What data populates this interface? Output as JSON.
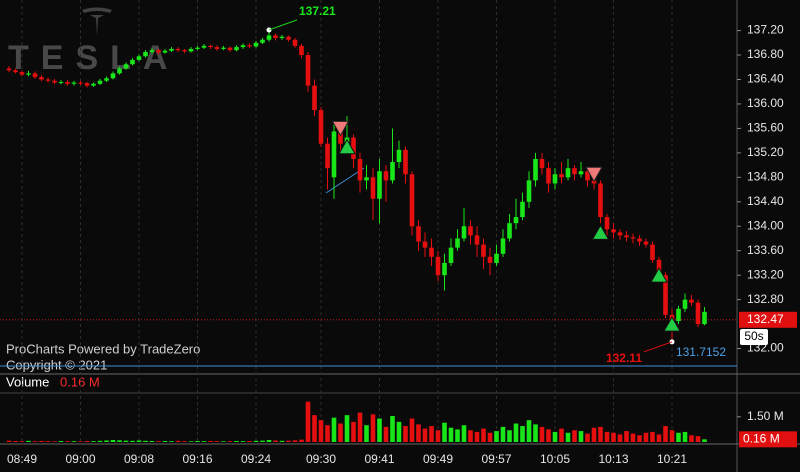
{
  "chart_data": {
    "type": "candlestick",
    "watermark": "TESLA",
    "credit": "ProCharts Powered by TradeZero",
    "copyright": "Copyright © 2021",
    "timer": "50s",
    "volume_title": "Volume",
    "volume_current": {
      "value": 0.16,
      "label": "0.16 M"
    },
    "categories": [
      null,
      null,
      "08:49",
      null,
      null,
      null,
      null,
      null,
      null,
      null,
      null,
      "09:00",
      null,
      null,
      null,
      null,
      null,
      null,
      null,
      null,
      "09:08",
      null,
      null,
      null,
      null,
      null,
      null,
      null,
      null,
      "09:16",
      null,
      null,
      null,
      null,
      null,
      null,
      null,
      null,
      "09:24",
      null,
      null,
      null,
      null,
      null,
      null,
      null,
      null,
      null,
      "09:30",
      null,
      null,
      null,
      null,
      null,
      null,
      null,
      null,
      "09:41",
      null,
      null,
      null,
      null,
      null,
      null,
      null,
      null,
      "09:49",
      null,
      null,
      null,
      null,
      null,
      null,
      null,
      null,
      "09:57",
      null,
      null,
      null,
      null,
      null,
      null,
      null,
      null,
      "10:05",
      null,
      null,
      null,
      null,
      null,
      null,
      null,
      null,
      "10:13",
      null,
      null,
      null,
      null,
      null,
      null,
      null,
      null,
      "10:21",
      null,
      null,
      null,
      null,
      null
    ],
    "open": [
      136.58,
      136.55,
      136.52,
      136.48,
      136.5,
      136.44,
      136.4,
      136.38,
      136.35,
      136.36,
      136.33,
      136.35,
      136.34,
      136.3,
      136.33,
      136.38,
      136.42,
      136.5,
      136.58,
      136.65,
      136.72,
      136.78,
      136.85,
      136.88,
      136.84,
      136.87,
      136.9,
      136.88,
      136.86,
      136.9,
      136.92,
      136.95,
      136.93,
      136.9,
      136.92,
      136.88,
      136.93,
      136.96,
      136.94,
      137.0,
      137.05,
      137.12,
      137.08,
      137.1,
      137.05,
      136.95,
      136.8,
      136.3,
      135.9,
      135.35,
      134.8,
      135.55,
      135.35,
      135.45,
      135.1,
      134.75,
      134.8,
      134.45,
      134.9,
      134.75,
      135.05,
      135.25,
      134.85,
      134.0,
      133.75,
      133.65,
      133.5,
      133.2,
      133.4,
      133.65,
      133.8,
      134.0,
      133.85,
      133.7,
      133.5,
      133.4,
      133.55,
      133.8,
      134.05,
      134.15,
      134.4,
      134.75,
      135.1,
      134.95,
      134.7,
      134.85,
      134.8,
      134.95,
      134.85,
      134.9,
      134.75,
      134.7,
      134.15,
      133.95,
      133.9,
      133.85,
      133.82,
      133.8,
      133.75,
      133.7,
      133.45,
      133.2,
      132.55,
      132.45,
      132.65,
      132.8,
      132.75,
      132.4
    ],
    "high": [
      136.62,
      136.58,
      136.55,
      136.54,
      136.53,
      136.47,
      136.43,
      136.41,
      136.39,
      136.39,
      136.38,
      136.38,
      136.36,
      136.35,
      136.41,
      136.45,
      136.53,
      136.61,
      136.68,
      136.75,
      136.81,
      136.88,
      136.91,
      136.9,
      136.9,
      136.93,
      136.93,
      136.9,
      136.93,
      136.95,
      136.98,
      136.97,
      136.96,
      136.95,
      136.94,
      136.96,
      136.99,
      136.99,
      137.03,
      137.08,
      137.21,
      137.15,
      137.13,
      137.12,
      137.08,
      136.98,
      136.85,
      136.4,
      135.95,
      135.45,
      135.7,
      135.65,
      135.8,
      135.5,
      135.2,
      135.0,
      134.95,
      135.1,
      135.0,
      135.6,
      135.4,
      135.3,
      134.9,
      134.1,
      133.9,
      133.8,
      133.6,
      133.55,
      133.8,
      133.95,
      134.3,
      134.1,
      134.0,
      133.8,
      133.65,
      133.7,
      133.95,
      134.2,
      134.45,
      134.55,
      134.9,
      135.2,
      135.2,
      135.05,
      134.95,
      135.05,
      135.1,
      135.0,
      135.05,
      134.95,
      134.85,
      134.75,
      134.2,
      134.05,
      133.95,
      133.92,
      133.88,
      133.85,
      133.8,
      133.75,
      133.5,
      133.25,
      132.65,
      132.7,
      132.9,
      132.88,
      132.8,
      132.68
    ],
    "low": [
      136.52,
      136.5,
      136.45,
      136.45,
      136.41,
      136.37,
      136.35,
      136.32,
      136.32,
      136.3,
      136.3,
      136.31,
      136.27,
      136.28,
      136.31,
      136.36,
      136.4,
      136.48,
      136.56,
      136.63,
      136.7,
      136.76,
      136.82,
      136.81,
      136.82,
      136.85,
      136.85,
      136.83,
      136.84,
      136.88,
      136.9,
      136.9,
      136.87,
      136.88,
      136.85,
      136.86,
      136.9,
      136.91,
      136.92,
      136.98,
      137.02,
      137.04,
      137.05,
      137.02,
      136.92,
      136.75,
      136.2,
      135.8,
      135.3,
      134.6,
      134.45,
      135.2,
      135.3,
      134.95,
      134.55,
      134.6,
      134.1,
      134.05,
      134.4,
      134.7,
      134.95,
      134.7,
      133.85,
      133.6,
      133.5,
      133.35,
      133.1,
      132.95,
      133.35,
      133.6,
      133.75,
      133.7,
      133.5,
      133.3,
      133.2,
      133.35,
      133.5,
      133.75,
      133.95,
      134.1,
      134.3,
      134.65,
      134.85,
      134.55,
      134.6,
      134.7,
      134.75,
      134.75,
      134.8,
      134.65,
      134.6,
      134.05,
      133.85,
      133.8,
      133.78,
      133.75,
      133.72,
      133.68,
      133.65,
      133.4,
      133.15,
      132.5,
      132.11,
      132.4,
      132.6,
      132.7,
      132.35,
      132.38
    ],
    "close": [
      136.55,
      136.52,
      136.48,
      136.5,
      136.44,
      136.4,
      136.38,
      136.35,
      136.36,
      136.33,
      136.35,
      136.34,
      136.3,
      136.33,
      136.38,
      136.42,
      136.5,
      136.58,
      136.65,
      136.72,
      136.78,
      136.85,
      136.88,
      136.84,
      136.87,
      136.9,
      136.88,
      136.86,
      136.9,
      136.92,
      136.95,
      136.93,
      136.9,
      136.92,
      136.88,
      136.93,
      136.96,
      136.94,
      137.0,
      137.05,
      137.12,
      137.08,
      137.1,
      137.05,
      136.95,
      136.8,
      136.3,
      135.9,
      135.35,
      134.95,
      135.55,
      135.35,
      135.45,
      135.1,
      134.75,
      134.8,
      134.45,
      134.9,
      134.75,
      135.05,
      135.25,
      134.85,
      134.0,
      133.75,
      133.65,
      133.5,
      133.2,
      133.4,
      133.65,
      133.8,
      134.0,
      133.85,
      133.7,
      133.5,
      133.4,
      133.55,
      133.8,
      134.05,
      134.15,
      134.4,
      134.75,
      135.1,
      134.95,
      134.7,
      134.85,
      134.8,
      134.95,
      134.85,
      134.9,
      134.75,
      134.7,
      134.15,
      133.95,
      133.9,
      133.85,
      133.82,
      133.8,
      133.75,
      133.7,
      133.45,
      133.2,
      132.55,
      132.45,
      132.65,
      132.8,
      132.75,
      132.4,
      132.6
    ],
    "volume": [
      0.08,
      0.06,
      0.05,
      0.07,
      0.05,
      0.06,
      0.05,
      0.04,
      0.06,
      0.05,
      0.05,
      0.04,
      0.06,
      0.05,
      0.07,
      0.09,
      0.12,
      0.1,
      0.08,
      0.07,
      0.09,
      0.07,
      0.06,
      0.05,
      0.06,
      0.05,
      0.07,
      0.05,
      0.04,
      0.06,
      0.05,
      0.06,
      0.05,
      0.04,
      0.05,
      0.06,
      0.05,
      0.06,
      0.07,
      0.08,
      0.12,
      0.09,
      0.07,
      0.08,
      0.1,
      0.14,
      2.4,
      1.6,
      1.3,
      1.0,
      1.45,
      1.1,
      1.6,
      1.2,
      1.75,
      1.0,
      1.65,
      1.4,
      0.9,
      1.55,
      1.2,
      0.95,
      1.4,
      1.05,
      0.8,
      0.95,
      0.7,
      1.15,
      0.85,
      0.75,
      1.0,
      0.7,
      0.6,
      0.8,
      0.55,
      0.65,
      0.9,
      0.7,
      1.1,
      0.95,
      1.3,
      1.05,
      0.9,
      0.75,
      0.6,
      0.8,
      0.55,
      0.7,
      0.65,
      0.5,
      0.85,
      0.9,
      0.6,
      0.55,
      0.45,
      0.65,
      0.5,
      0.4,
      0.55,
      0.6,
      0.45,
      0.95,
      0.7,
      0.55,
      0.6,
      0.4,
      0.35,
      0.16
    ],
    "up_color": "#19e619",
    "down_color": "#e60f0f",
    "ylim": [
      131.6,
      137.7
    ],
    "yticks": [
      {
        "value": 132.0,
        "label": "132.00"
      },
      {
        "value": 132.8,
        "label": "132.80"
      },
      {
        "value": 133.2,
        "label": "133.20"
      },
      {
        "value": 133.6,
        "label": "133.60"
      },
      {
        "value": 134.0,
        "label": "134.00"
      },
      {
        "value": 134.4,
        "label": "134.40"
      },
      {
        "value": 134.8,
        "label": "134.80"
      },
      {
        "value": 135.2,
        "label": "135.20"
      },
      {
        "value": 135.6,
        "label": "135.60"
      },
      {
        "value": 136.0,
        "label": "136.00"
      },
      {
        "value": 136.4,
        "label": "136.40"
      },
      {
        "value": 136.8,
        "label": "136.80"
      },
      {
        "value": 137.2,
        "label": "137.20"
      }
    ],
    "volume_ylim": [
      0,
      2.8
    ],
    "volume_yticks": [
      {
        "value": 1.5,
        "label": "1.50 M"
      }
    ],
    "last_price": {
      "value": 132.47,
      "label": "132.47"
    },
    "level": {
      "value": 131.7152,
      "label": "131.7152"
    },
    "high_mark": {
      "index": 40,
      "value": 137.21,
      "label": "137.21"
    },
    "low_mark": {
      "index": 102,
      "value": 132.11,
      "label": "132.11"
    },
    "sells": [
      {
        "index": 51,
        "price": 135.6
      },
      {
        "index": 90,
        "price": 134.85
      }
    ],
    "buys": [
      {
        "index": 52,
        "price": 135.3
      },
      {
        "index": 91,
        "price": 133.9
      },
      {
        "index": 100,
        "price": 133.2
      },
      {
        "index": 102,
        "price": 132.4
      }
    ]
  }
}
